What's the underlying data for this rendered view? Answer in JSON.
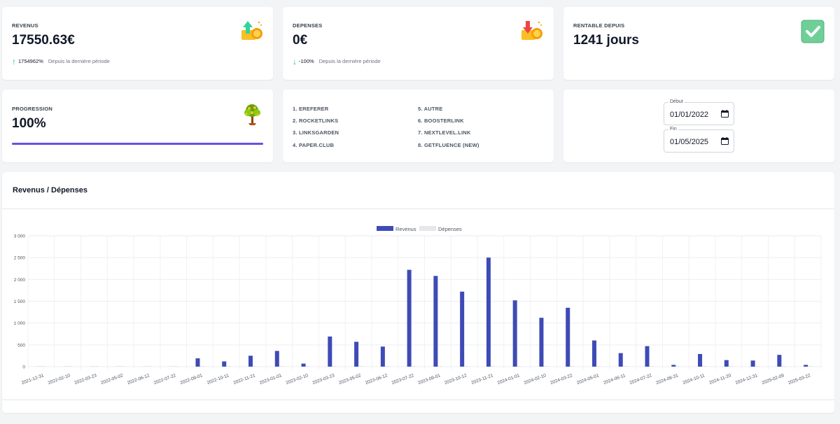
{
  "cards": {
    "revenus": {
      "label": "REVENUS",
      "value": "17550.63€",
      "change": "1754962%",
      "note": "Depuis la dernière période",
      "icon": "money-up-icon"
    },
    "depenses": {
      "label": "DEPENSES",
      "value": "0€",
      "change": "-100%",
      "note": "Depuis la dernière période",
      "icon": "money-down-icon"
    },
    "rentable": {
      "label": "RENTABLE DEPUIS",
      "value": "1241 jours",
      "icon": "check-icon"
    },
    "progression": {
      "label": "PROGRESSION",
      "value": "100%",
      "progress": 1.0,
      "icon": "money-tree-icon"
    }
  },
  "sources": [
    "1. EREFERER",
    "2. ROCKETLINKS",
    "3. LINKSGARDEN",
    "4. PAPER.CLUB",
    "5. AUTRE",
    "6. BOOSTERLINK",
    "7. NEXTLEVEL.LINK",
    "8. GETFLUENCE (NEW)"
  ],
  "dates": {
    "debut_label": "Début",
    "debut_value": "01/01/2022",
    "fin_label": "Fin",
    "fin_value": "01/05/2025"
  },
  "colors": {
    "accent": "#6d4fe0",
    "bar_revenus": "#3e4bb6",
    "bar_depenses": "#e5e7eb"
  },
  "chart_data": {
    "type": "bar",
    "title": "Revenus / Dépenses",
    "legend_position": "top-center",
    "grid": true,
    "ylim": [
      0,
      3000
    ],
    "yticks": [
      "0",
      "500",
      "1 000",
      "1 500",
      "2 000",
      "2 500",
      "3 000"
    ],
    "categories": [
      "2021-12-31",
      "2022-02-10",
      "2022-03-23",
      "2022-05-02",
      "2022-06-12",
      "2022-07-22",
      "2022-09-01",
      "2022-10-11",
      "2022-11-21",
      "2023-01-01",
      "2023-02-10",
      "2023-03-23",
      "2023-05-02",
      "2023-06-12",
      "2023-07-22",
      "2023-09-01",
      "2023-10-12",
      "2023-11-21",
      "2024-01-01",
      "2024-02-10",
      "2024-03-22",
      "2024-05-01",
      "2024-06-11",
      "2024-07-22",
      "2024-08-31",
      "2024-10-11",
      "2024-11-20",
      "2024-12-31",
      "2025-02-09",
      "2025-03-22"
    ],
    "series": [
      {
        "name": "Revenus",
        "values": [
          0,
          0,
          0,
          0,
          0,
          0,
          190,
          120,
          250,
          360,
          70,
          690,
          570,
          460,
          2220,
          2080,
          1720,
          2500,
          1520,
          1120,
          1350,
          600,
          310,
          470,
          40,
          290,
          150,
          140,
          270,
          40
        ]
      },
      {
        "name": "Dépenses",
        "values": [
          0,
          0,
          0,
          0,
          0,
          0,
          0,
          0,
          0,
          0,
          0,
          0,
          0,
          0,
          0,
          0,
          0,
          0,
          0,
          0,
          0,
          0,
          0,
          0,
          0,
          0,
          0,
          0,
          0,
          0
        ]
      }
    ]
  }
}
